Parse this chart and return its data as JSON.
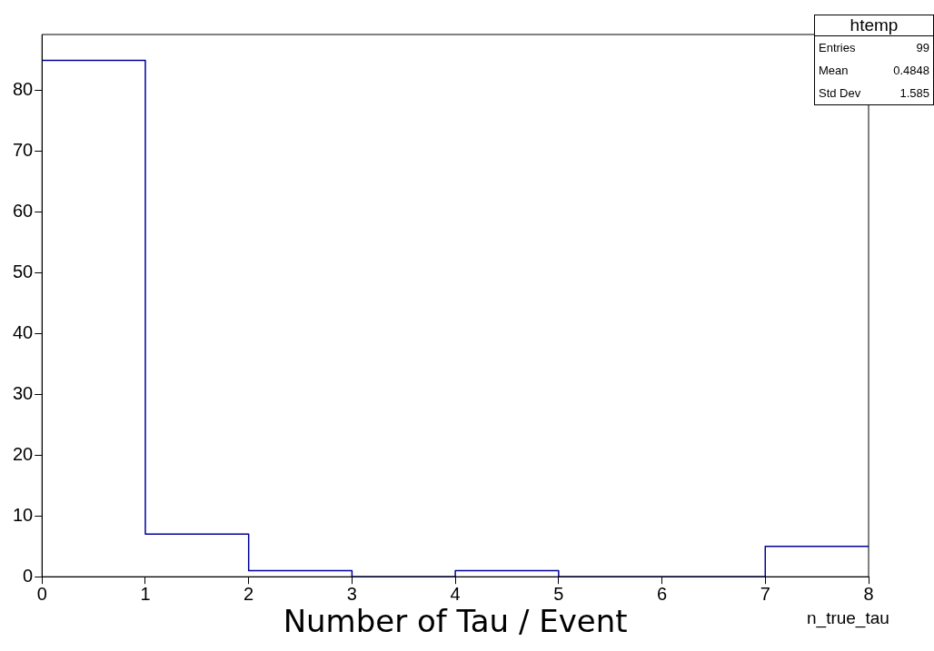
{
  "chart_data": {
    "type": "histogram",
    "bins": [
      0,
      1,
      2,
      3,
      4,
      5,
      6,
      7,
      8
    ],
    "values": [
      85,
      7,
      1,
      0,
      1,
      0,
      0,
      5
    ],
    "color": "#00009c",
    "xlabel": "Number of Tau / Event",
    "xlim": [
      0,
      8
    ],
    "xticks": [
      0,
      1,
      2,
      3,
      4,
      5,
      6,
      7,
      8
    ],
    "ylim": [
      0,
      89.25
    ],
    "yticks": [
      0,
      10,
      20,
      30,
      40,
      50,
      60,
      70,
      80
    ],
    "grid": false,
    "legend": false,
    "annotations": [
      "htemp",
      "Entries",
      "99",
      "Mean",
      "0.4848",
      "Std Dev",
      "1.585",
      "n_true_tau"
    ]
  }
}
